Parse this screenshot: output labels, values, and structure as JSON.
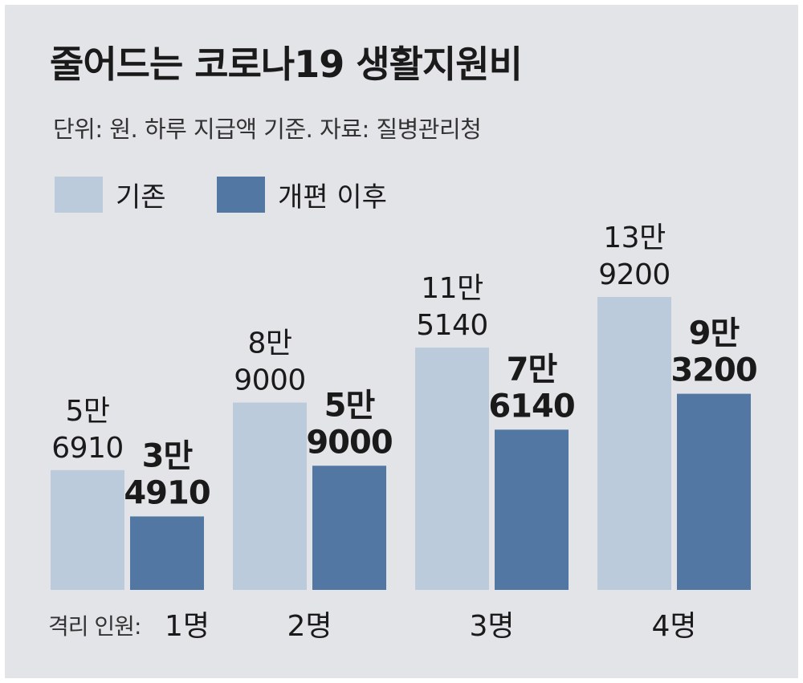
{
  "title": "줄어드는 코로나19 생활지원비",
  "subtitle": "단위: 원. 하루 지급액 기준. 자료: 질병관리청",
  "colors": {
    "background": "#e3e4e8",
    "before": "#bccbdb",
    "after": "#5277a3",
    "text": "#1a1a1a"
  },
  "chart_data": {
    "type": "bar",
    "categories": [
      "1명",
      "2명",
      "3명",
      "4명"
    ],
    "category_prefix": "격리 인원:",
    "series": [
      {
        "name": "기존",
        "values": [
          56910,
          89000,
          115140,
          139200
        ],
        "labels": [
          [
            "5만",
            "6910"
          ],
          [
            "8만",
            "9000"
          ],
          [
            "11만",
            "5140"
          ],
          [
            "13만",
            "9200"
          ]
        ]
      },
      {
        "name": "개편 이후",
        "values": [
          34910,
          59000,
          76140,
          93200
        ],
        "labels": [
          [
            "3만",
            "4910"
          ],
          [
            "5만",
            "9000"
          ],
          [
            "7만",
            "6140"
          ],
          [
            "9만",
            "3200"
          ]
        ]
      }
    ],
    "ylim": [
      0,
      139200
    ],
    "legend": "top-left",
    "grid": false
  }
}
